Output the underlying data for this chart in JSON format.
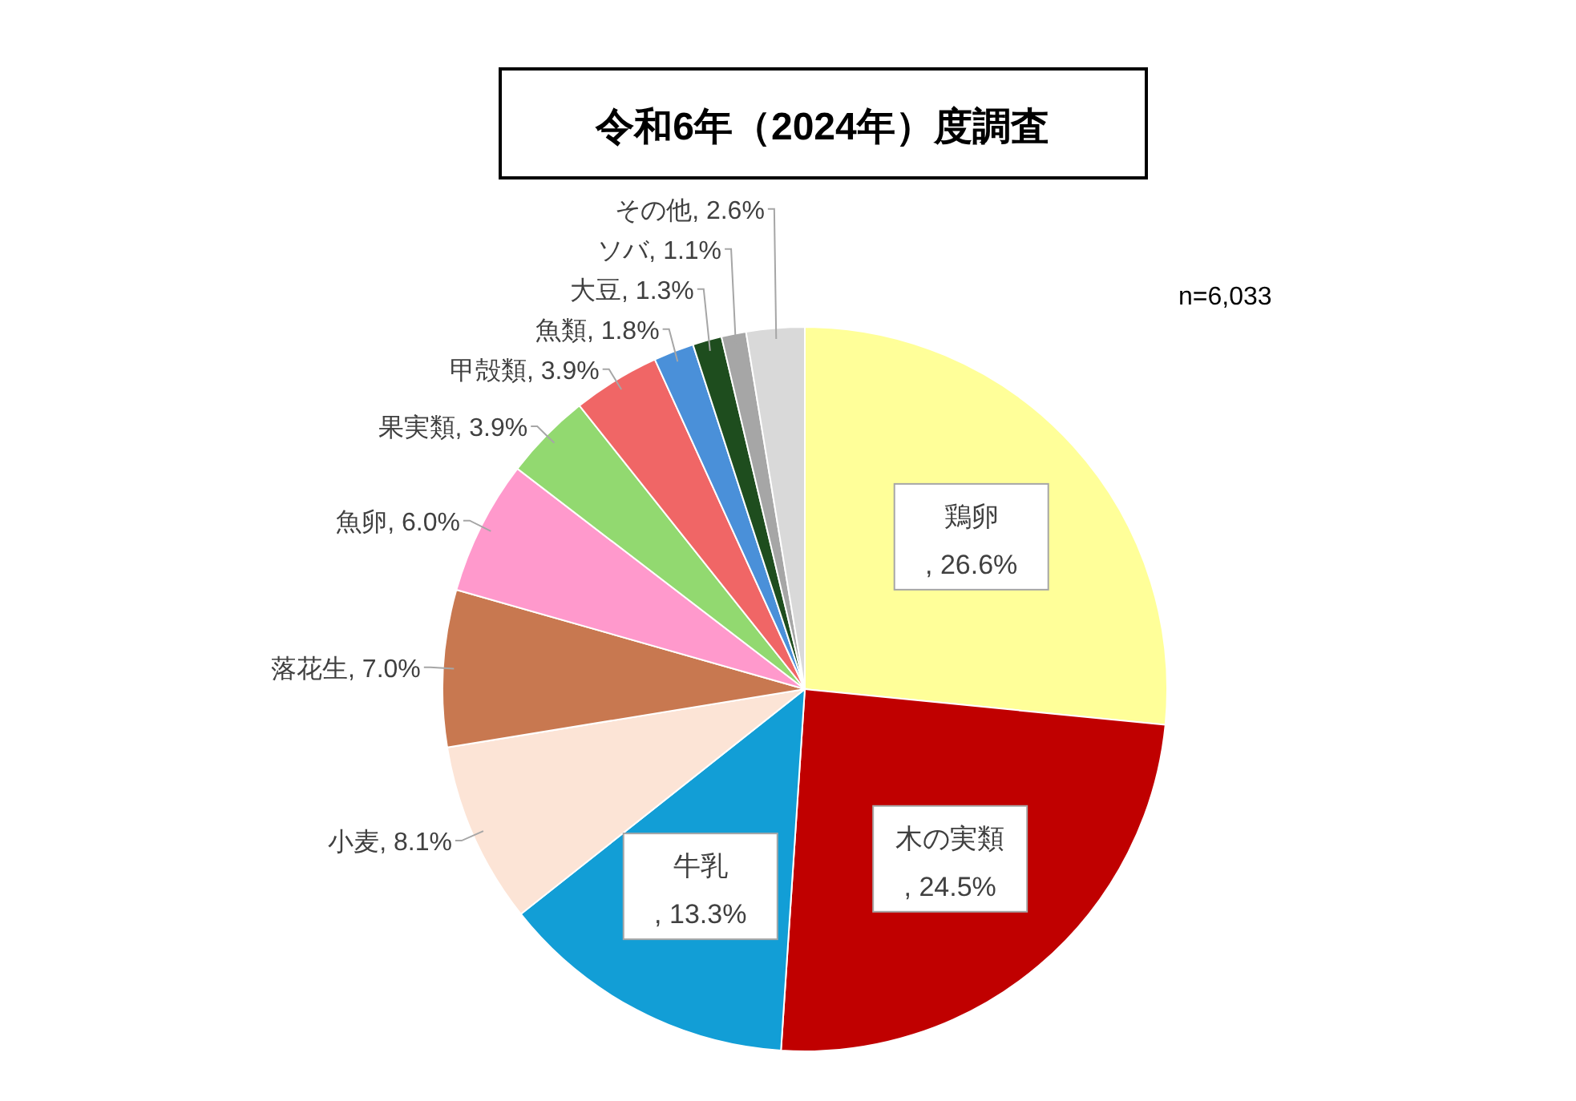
{
  "chart_data": {
    "type": "pie",
    "title": "令和6年（2024年）度調査",
    "categories": [
      "鶏卵",
      "木の実類",
      "牛乳",
      "小麦",
      "落花生",
      "魚卵",
      "果実類",
      "甲殻類",
      "魚類",
      "大豆",
      "ソバ",
      "その他"
    ],
    "values": [
      26.6,
      24.5,
      13.3,
      8.1,
      7.0,
      6.0,
      3.9,
      3.9,
      1.8,
      1.3,
      1.1,
      2.6
    ],
    "colors": [
      "#ffff99",
      "#c00000",
      "#129ed6",
      "#fce4d6",
      "#c87850",
      "#ff99cc",
      "#92d970",
      "#f06666",
      "#4a90d9",
      "#1e4d1e",
      "#a6a6a6",
      "#d9d9d9"
    ],
    "value_labels": [
      ", 26.6%",
      ", 24.5%",
      ", 13.3%",
      ", 8.1%",
      ", 7.0%",
      ", 6.0%",
      ", 3.9%",
      ", 3.9%",
      ", 1.8%",
      ", 1.3%",
      ", 1.1%",
      ", 2.6%"
    ],
    "annotations": [
      "n=6,033"
    ]
  }
}
